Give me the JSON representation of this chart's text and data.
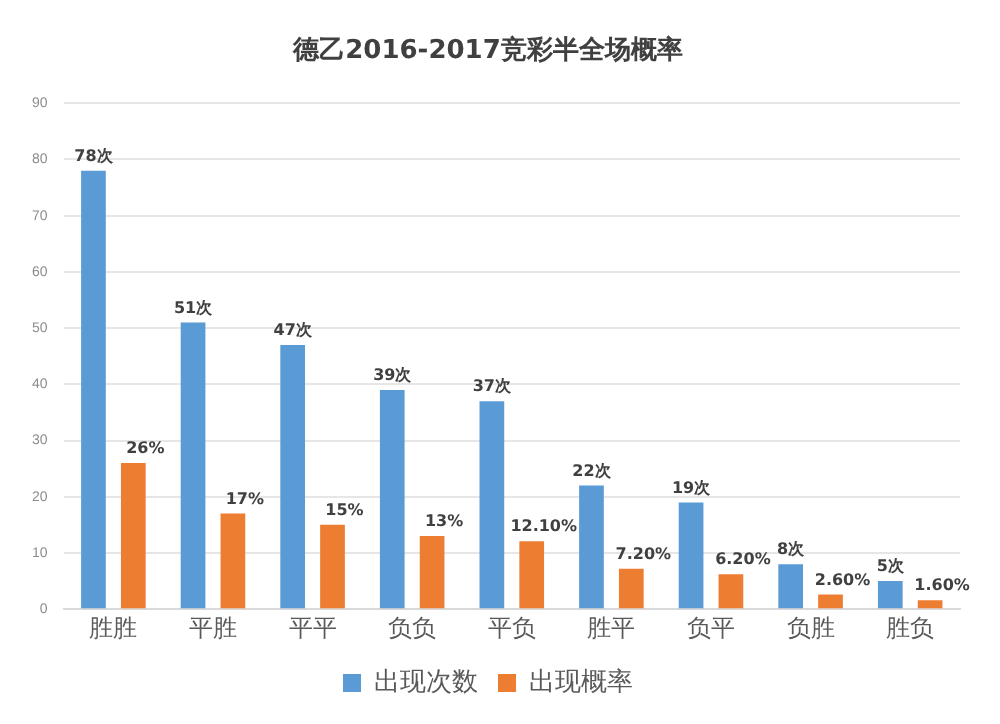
{
  "chart_data": {
    "type": "bar",
    "title": "德乙2016-2017竞彩半全场概率",
    "categories": [
      "胜胜",
      "平胜",
      "平平",
      "负负",
      "平负",
      "胜平",
      "负平",
      "负胜",
      "胜负"
    ],
    "series": [
      {
        "name": "出现次数",
        "color": "#5b9bd5",
        "values": [
          78,
          51,
          47,
          39,
          37,
          22,
          19,
          8,
          5
        ],
        "value_labels": [
          "78次",
          "51次",
          "47次",
          "39次",
          "37次",
          "22次",
          "19次",
          "8次",
          "5次"
        ]
      },
      {
        "name": "出现概率",
        "color": "#ed7d31",
        "values": [
          26,
          17,
          15,
          13,
          12.1,
          7.2,
          6.2,
          2.6,
          1.6
        ],
        "value_labels": [
          "26%",
          "17%",
          "15%",
          "13%",
          "12.10%",
          "7.20%",
          "6.20%",
          "2.60%",
          "1.60%"
        ]
      }
    ],
    "ylim": [
      0,
      90
    ],
    "yticks": [
      0,
      10,
      20,
      30,
      40,
      50,
      60,
      70,
      80,
      90
    ],
    "grid": "y",
    "legend": "bottom"
  }
}
